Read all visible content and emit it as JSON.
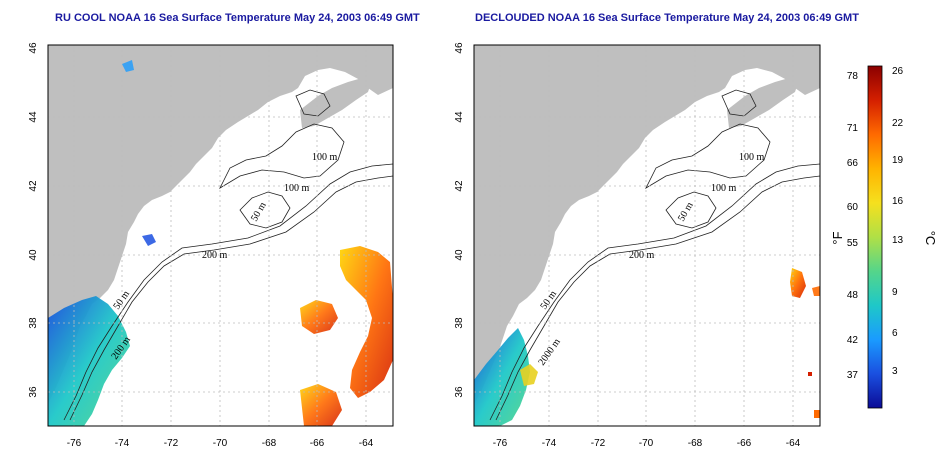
{
  "colors": {
    "land": "#bfbfbf",
    "title": "#1a1aa0",
    "grid": "#bcbcbc"
  },
  "maps": [
    {
      "title": "RU COOL NOAA 16 Sea Surface Temperature May 24, 2003 06:49 GMT",
      "x_ticks": [
        "-76",
        "-74",
        "-72",
        "-70",
        "-68",
        "-66",
        "-64"
      ],
      "y_ticks": [
        "46",
        "44",
        "42",
        "40",
        "38",
        "36"
      ],
      "contour_labels": [
        "100 m",
        "100 m",
        "50 m",
        "200 m",
        "50 m",
        "200 m"
      ]
    },
    {
      "title": "DECLOUDED NOAA 16 Sea Surface Temperature May 24, 2003 06:49 GMT",
      "x_ticks": [
        "-76",
        "-74",
        "-72",
        "-70",
        "-68",
        "-66",
        "-64"
      ],
      "y_ticks": [
        "46",
        "44",
        "42",
        "40",
        "38",
        "36"
      ],
      "contour_labels": [
        "100 m",
        "100 m",
        "50 m",
        "200 m",
        "50 m",
        "2000 m"
      ]
    }
  ],
  "colorbar": {
    "fahrenheit_ticks": [
      "78",
      "71",
      "66",
      "60",
      "55",
      "48",
      "42",
      "37"
    ],
    "celsius_ticks": [
      "26",
      "22",
      "19",
      "16",
      "13",
      "9",
      "6",
      "3"
    ],
    "fahrenheit_label": "°F",
    "celsius_label": "°C",
    "colors": [
      "#8b0000",
      "#d41f00",
      "#ff6a00",
      "#ffb300",
      "#f5e01e",
      "#b0e046",
      "#55d58a",
      "#1ec8c8",
      "#1a9bff",
      "#1a4fe0",
      "#0b0b96"
    ]
  }
}
